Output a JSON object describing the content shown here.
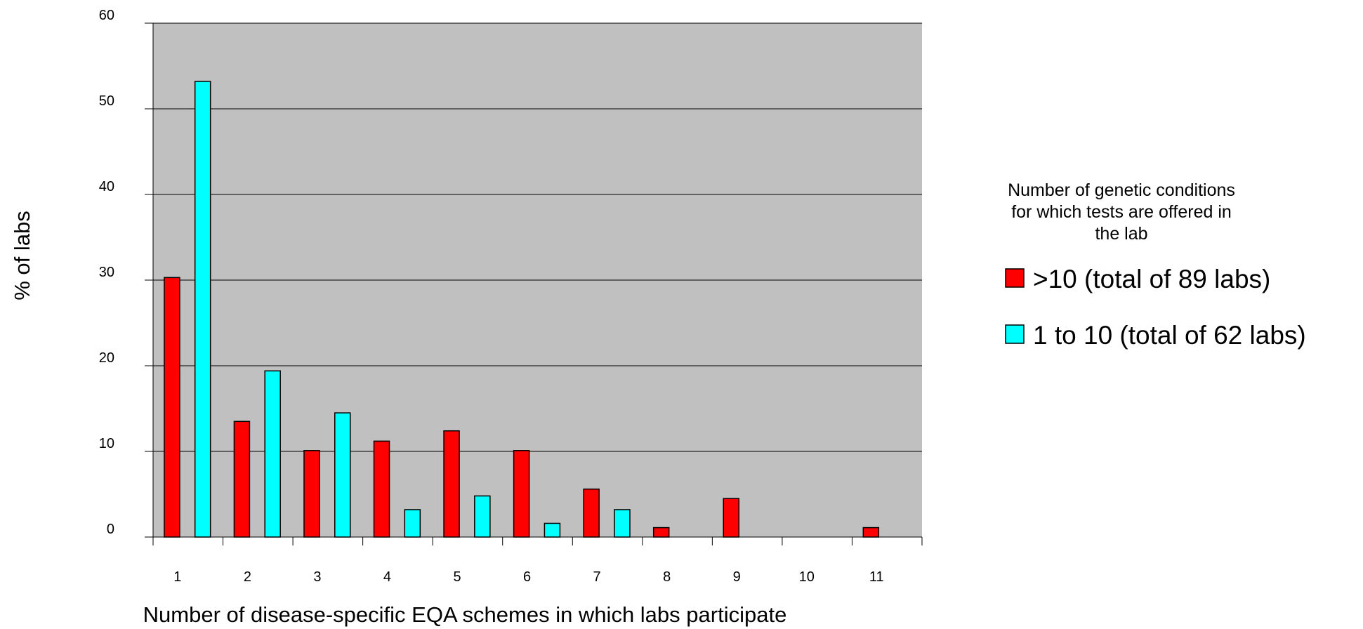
{
  "chart_data": {
    "type": "bar",
    "categories": [
      "1",
      "2",
      "3",
      "4",
      "5",
      "6",
      "7",
      "8",
      "9",
      "10",
      "11"
    ],
    "series": [
      {
        "name": ">10 (total of 89 labs)",
        "color": "#ff0000",
        "values": [
          30.3,
          13.5,
          10.1,
          11.2,
          12.4,
          10.1,
          5.6,
          1.1,
          4.5,
          0,
          1.1
        ]
      },
      {
        "name": "1 to 10 (total of 62 labs)",
        "color": "#00ffff",
        "values": [
          53.2,
          19.4,
          14.5,
          3.2,
          4.8,
          1.6,
          3.2,
          0,
          0,
          0,
          0
        ]
      }
    ],
    "xlabel": "Number of disease-specific EQA schemes in which labs participate",
    "ylabel": "% of labs",
    "ylim": [
      0,
      60
    ],
    "yticks": [
      "0",
      "10",
      "20",
      "30",
      "40",
      "50",
      "60"
    ],
    "grid": true,
    "plot_background": "#c0c0c0",
    "legend_title_lines": [
      "Number of genetic conditions",
      "for which tests are offered in",
      "the lab"
    ],
    "legend_placement": "right"
  }
}
